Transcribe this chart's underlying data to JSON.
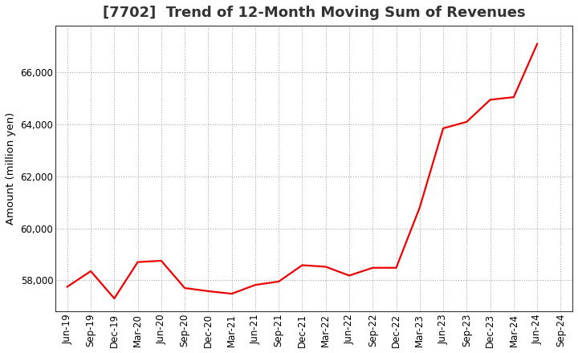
{
  "title": "[7702]  Trend of 12-Month Moving Sum of Revenues",
  "ylabel": "Amount (million yen)",
  "line_color": "#ee0000",
  "background_color": "#ffffff",
  "plot_bg_color": "#ffffff",
  "grid_color": "#999999",
  "tick_labels": [
    "Jun-19",
    "Sep-19",
    "Dec-19",
    "Mar-20",
    "Jun-20",
    "Sep-20",
    "Dec-20",
    "Mar-21",
    "Jun-21",
    "Sep-21",
    "Dec-21",
    "Mar-22",
    "Jun-22",
    "Sep-22",
    "Dec-22",
    "Mar-23",
    "Jun-23",
    "Sep-23",
    "Dec-23",
    "Mar-24",
    "Jun-24",
    "Sep-24"
  ],
  "data_labels": [
    "Jun-19",
    "Sep-19",
    "Dec-19",
    "Mar-20",
    "Jun-20",
    "Sep-20",
    "Dec-20",
    "Mar-21",
    "Jun-21",
    "Sep-21",
    "Dec-21",
    "Mar-22",
    "Jun-22",
    "Sep-22",
    "Dec-22",
    "Mar-23",
    "Jun-23",
    "Sep-23",
    "Dec-23",
    "Mar-24",
    "Jun-24"
  ],
  "values": [
    57750,
    58350,
    57300,
    58700,
    58750,
    57700,
    57580,
    57480,
    57820,
    57950,
    58580,
    58520,
    58180,
    58480,
    58480,
    60800,
    63850,
    64100,
    64950,
    65050,
    67100
  ],
  "ylim": [
    56800,
    67800
  ],
  "yticks": [
    58000,
    60000,
    62000,
    64000,
    66000
  ],
  "title_fontsize": 13,
  "axis_fontsize": 9.5,
  "tick_fontsize": 8.5
}
